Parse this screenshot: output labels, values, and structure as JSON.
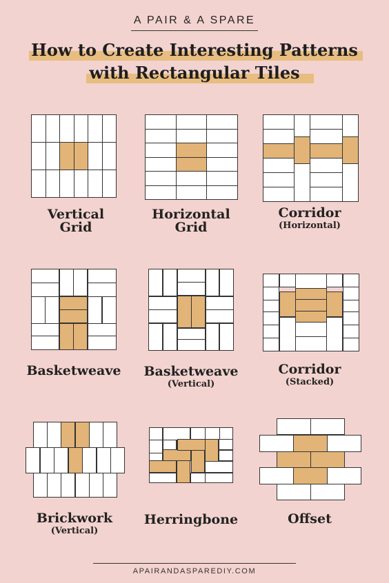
{
  "header": {
    "brand": "A PAIR & A SPARE",
    "title_line1": "How to Create Interesting Patterns",
    "title_line2": "with Rectangular Tiles"
  },
  "patterns": [
    {
      "name": "Vertical",
      "name2": "Grid",
      "sub": ""
    },
    {
      "name": "Horizontal",
      "name2": "Grid",
      "sub": ""
    },
    {
      "name": "Corridor",
      "name2": "",
      "sub": "(Horizontal)"
    },
    {
      "name": "Basketweave",
      "name2": "",
      "sub": ""
    },
    {
      "name": "Basketweave",
      "name2": "",
      "sub": "(Vertical)"
    },
    {
      "name": "Corridor",
      "name2": "",
      "sub": "(Stacked)"
    },
    {
      "name": "Brickwork",
      "name2": "",
      "sub": "(Vertical)"
    },
    {
      "name": "Herringbone",
      "name2": "",
      "sub": ""
    },
    {
      "name": "Offset",
      "name2": "",
      "sub": ""
    }
  ],
  "footer": {
    "website": "APAIRANDASPAREDIY.COM"
  },
  "colors": {
    "background": "#f3d3cf",
    "accent_tile": "#e2b478",
    "highlight": "#e8bd80",
    "tile": "#ffffff"
  }
}
